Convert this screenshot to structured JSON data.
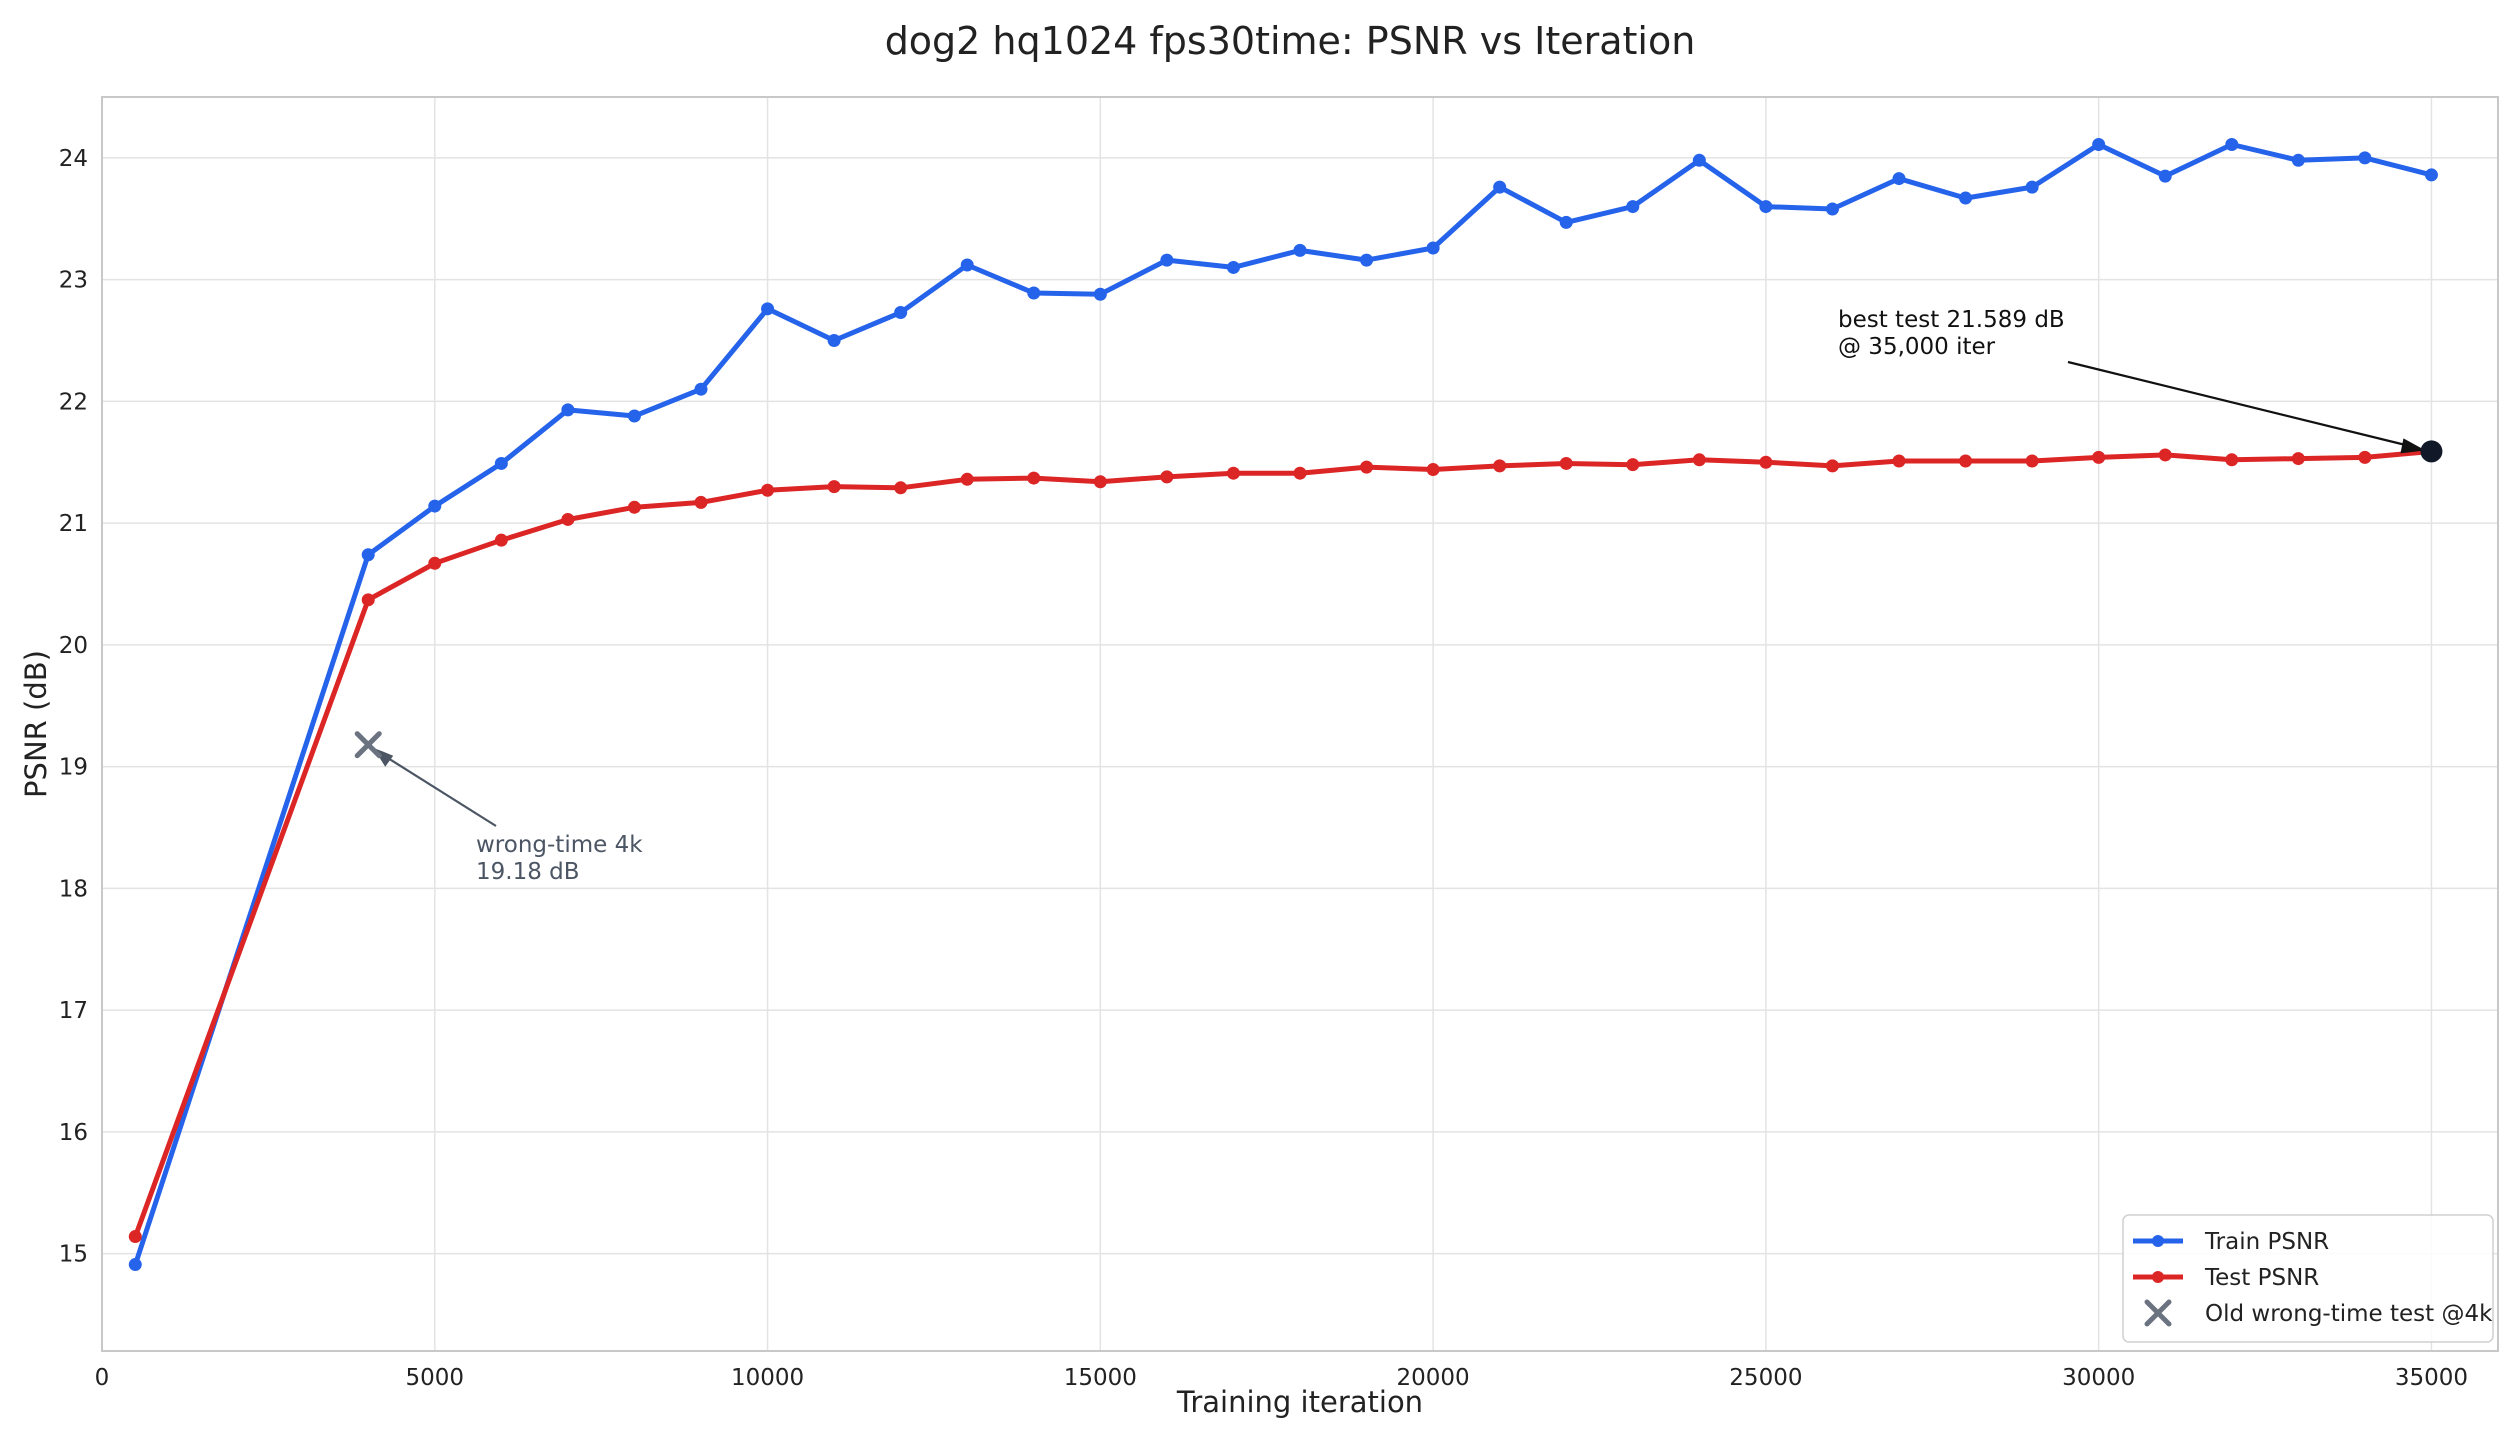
{
  "chart_data": {
    "type": "line",
    "title": "dog2 hq1024 fps30time: PSNR vs Iteration",
    "xlabel": "Training iteration",
    "ylabel": "PSNR (dB)",
    "xlim": [
      0,
      36000
    ],
    "ylim": [
      14.2,
      24.5
    ],
    "x_ticks": [
      0,
      5000,
      10000,
      15000,
      20000,
      25000,
      30000,
      35000
    ],
    "y_ticks": [
      15,
      16,
      17,
      18,
      19,
      20,
      21,
      22,
      23,
      24
    ],
    "grid": true,
    "legend_position": "bottom-right",
    "series": [
      {
        "name": "Train PSNR",
        "color": "#2563eb",
        "x": [
          500,
          4000,
          5000,
          6000,
          7000,
          8000,
          9000,
          10000,
          11000,
          12000,
          13000,
          14000,
          15000,
          16000,
          17000,
          18000,
          19000,
          20000,
          21000,
          22000,
          23000,
          24000,
          25000,
          26000,
          27000,
          28000,
          29000,
          30000,
          31000,
          32000,
          33000,
          34000,
          35000
        ],
        "y": [
          14.91,
          20.74,
          21.14,
          21.49,
          21.93,
          21.88,
          22.1,
          22.76,
          22.5,
          22.73,
          23.12,
          22.89,
          22.88,
          23.16,
          23.1,
          23.24,
          23.16,
          23.26,
          23.76,
          23.47,
          23.6,
          23.98,
          23.6,
          23.58,
          23.83,
          23.67,
          23.76,
          24.11,
          23.85,
          24.11,
          23.98,
          24.0,
          23.86
        ]
      },
      {
        "name": "Test PSNR",
        "color": "#dc2626",
        "x": [
          500,
          4000,
          5000,
          6000,
          7000,
          8000,
          9000,
          10000,
          11000,
          12000,
          13000,
          14000,
          15000,
          16000,
          17000,
          18000,
          19000,
          20000,
          21000,
          22000,
          23000,
          24000,
          25000,
          26000,
          27000,
          28000,
          29000,
          30000,
          31000,
          32000,
          33000,
          34000,
          35000
        ],
        "y": [
          15.14,
          20.37,
          20.67,
          20.86,
          21.03,
          21.13,
          21.17,
          21.27,
          21.3,
          21.29,
          21.36,
          21.37,
          21.34,
          21.38,
          21.41,
          21.41,
          21.46,
          21.44,
          21.47,
          21.49,
          21.48,
          21.52,
          21.5,
          21.47,
          21.51,
          21.51,
          21.51,
          21.54,
          21.56,
          21.52,
          21.53,
          21.54,
          21.589
        ]
      }
    ],
    "markers": [
      {
        "name": "Old wrong-time test @4k",
        "x": 4000,
        "y": 19.18,
        "color": "#6b7280",
        "symbol": "x"
      },
      {
        "x": 35000,
        "y": 21.589,
        "color": "#111827",
        "symbol": "dot"
      }
    ],
    "annotations": [
      {
        "lines": [
          "best test 21.589 dB",
          "@ 35,000 iter"
        ],
        "color": "#111111"
      },
      {
        "lines": [
          "wrong-time 4k",
          "19.18 dB"
        ],
        "color": "#4b5563"
      }
    ]
  }
}
